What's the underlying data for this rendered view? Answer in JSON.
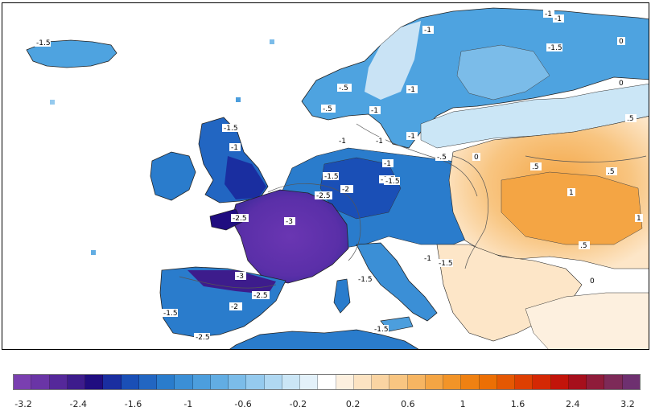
{
  "colorbar": {
    "colors": [
      "#7a3fb0",
      "#6a35a6",
      "#55289a",
      "#3d1c8c",
      "#200d80",
      "#1a2ea0",
      "#1a4fb6",
      "#2266c2",
      "#2a7ccc",
      "#3b8fd6",
      "#4c9edd",
      "#62ade3",
      "#7bbce9",
      "#95caee",
      "#b0d8f2",
      "#cbe6f6",
      "#e3f1fa",
      "#ffffff",
      "#fdf0df",
      "#fce3c2",
      "#fad4a2",
      "#f8c581",
      "#f6b562",
      "#f4a544",
      "#f29428",
      "#ef8112",
      "#ec6f04",
      "#e55803",
      "#de3f02",
      "#d42804",
      "#c2140a",
      "#a60f1c",
      "#8f1c3a",
      "#7d2a58",
      "#6e3070"
    ],
    "ticks": [
      "-3.2",
      "-2.4",
      "-1.6",
      "-1",
      "-0.6",
      "-0.2",
      "0.2",
      "0.6",
      "1",
      "1.6",
      "2.4",
      "3.2"
    ]
  },
  "map": {
    "contour_labels": [
      "-1",
      "-1.5",
      "-1.5",
      "-1",
      "-1.5",
      "-2",
      "-2.5",
      "-2.5",
      "-2.5",
      "-3",
      "-3",
      "-1.5",
      "-2",
      "-2.5",
      "-1.5",
      "-1.5",
      "-1.5",
      "-1",
      "-1",
      "-1",
      "-1",
      "-1",
      "-1.5",
      "-.5",
      ".5",
      "0",
      "0",
      ".5",
      "1",
      ".5",
      "1",
      ".5",
      "-1",
      "-.5",
      "-.5",
      "0",
      "-1",
      "-1.5",
      "-1",
      "-1",
      "-1.5",
      "0"
    ]
  }
}
